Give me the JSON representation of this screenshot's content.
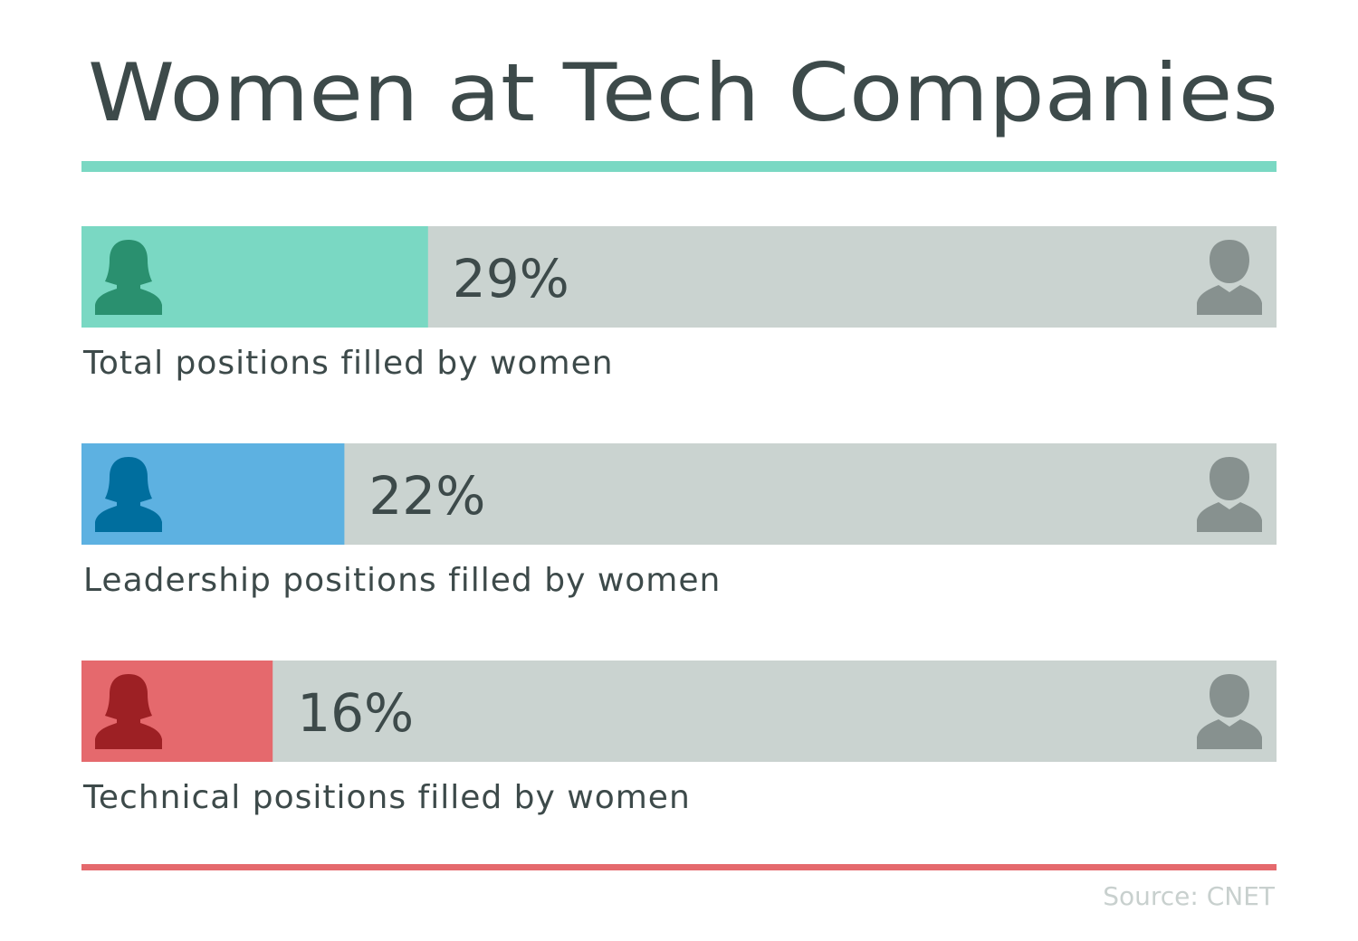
{
  "chart_data": {
    "type": "bar",
    "title": "Women at Tech Companies",
    "categories": [
      "Total positions filled by women",
      "Leadership positions filled by women",
      "Technical positions filled by women"
    ],
    "values": [
      29,
      22,
      16
    ],
    "value_labels": [
      "29%",
      "22%",
      "16%"
    ],
    "colors": [
      "#7ad8c3",
      "#5db1e1",
      "#e5696d"
    ],
    "icon_colors": [
      "#2a906f",
      "#006e9e",
      "#9d2024"
    ],
    "track_color": "#cad3d0",
    "xlim": [
      0,
      100
    ],
    "source": "Source: CNET"
  }
}
